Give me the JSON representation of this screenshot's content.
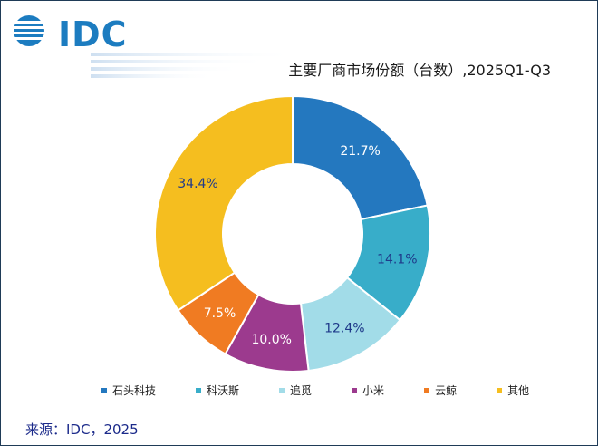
{
  "logo": {
    "text": "IDC"
  },
  "title": "主要厂商市场份额（台数）,2025Q1-Q3",
  "source": "来源：IDC，2025",
  "chart_data": {
    "type": "pie",
    "donut": true,
    "title": "主要厂商市场份额（台数）,2025Q1-Q3",
    "categories": [
      "石头科技",
      "科沃斯",
      "追觅",
      "小米",
      "云鲸",
      "其他"
    ],
    "values": [
      21.7,
      14.1,
      12.4,
      10.0,
      7.5,
      34.4
    ],
    "labels": [
      "21.7%",
      "14.1%",
      "12.4%",
      "10.0%",
      "7.5%",
      "34.4%"
    ],
    "colors": [
      "#2478bf",
      "#38adc9",
      "#a2dce8",
      "#9c3a8e",
      "#f07b22",
      "#f5be1f"
    ],
    "label_colors": [
      "#ffffff",
      "#1f3a8a",
      "#1f3a8a",
      "#ffffff",
      "#ffffff",
      "#1f3a8a"
    ],
    "legend_position": "bottom"
  }
}
